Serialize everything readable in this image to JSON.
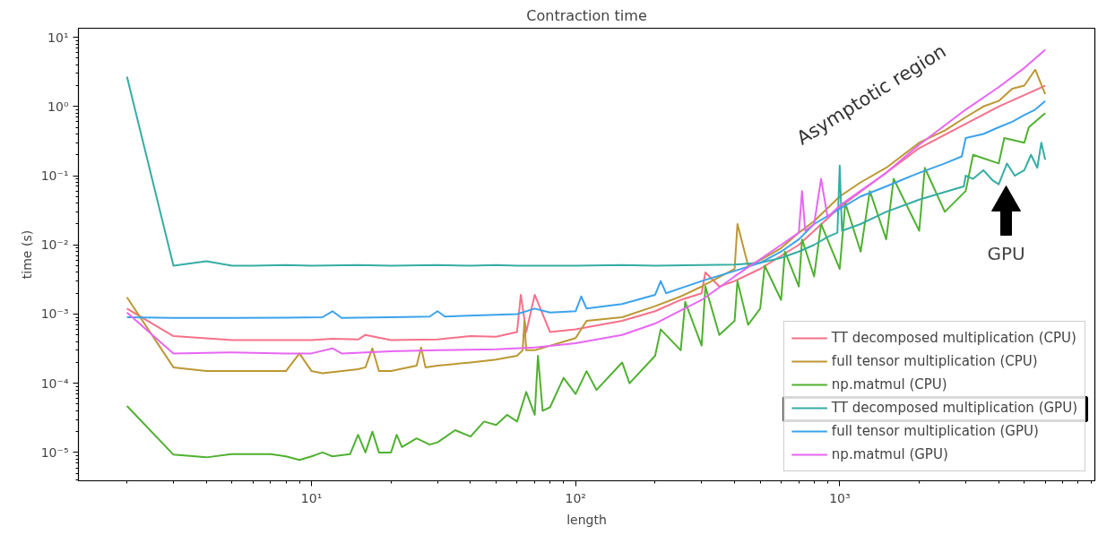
{
  "chart_data": {
    "type": "line",
    "title": "Contraction time",
    "xlabel": "length",
    "ylabel": "time (s)",
    "log": "xy",
    "grid": false,
    "legend": "bottom right",
    "marker": "none",
    "line_style": "solid",
    "xlim": [
      1.31,
      9250
    ],
    "ylim": [
      3.9e-06,
      13.5
    ],
    "xticks": [
      {
        "value": 10,
        "label": "10¹"
      },
      {
        "value": 100,
        "label": "10²"
      },
      {
        "value": 1000,
        "label": "10³"
      }
    ],
    "yticks": [
      {
        "value": 1e-05,
        "label": "10⁻⁵"
      },
      {
        "value": 0.0001,
        "label": "10⁻⁴"
      },
      {
        "value": 0.001,
        "label": "10⁻³"
      },
      {
        "value": 0.01,
        "label": "10⁻²"
      },
      {
        "value": 0.1,
        "label": "10⁻¹"
      },
      {
        "value": 1,
        "label": "10⁰"
      },
      {
        "value": 10,
        "label": "10¹"
      }
    ],
    "annotations": [
      "Asymptotic region",
      "GPU"
    ],
    "series": [
      {
        "name": "TT decomposed multiplication (CPU)",
        "color": "#f77189",
        "x": [
          2,
          3,
          5,
          8,
          10,
          12,
          15,
          16,
          20,
          30,
          40,
          50,
          60,
          62,
          65,
          70,
          80,
          100,
          150,
          200,
          250,
          300,
          310,
          350,
          400,
          500,
          700,
          1000,
          2000,
          4000,
          6000
        ],
        "values": [
          0.0012,
          0.00048,
          0.00042,
          0.00042,
          0.00042,
          0.00044,
          0.00043,
          0.0005,
          0.00042,
          0.00043,
          0.00048,
          0.00047,
          0.00055,
          0.0019,
          0.00055,
          0.0019,
          0.00055,
          0.0006,
          0.0008,
          0.0011,
          0.0016,
          0.002,
          0.004,
          0.0025,
          0.003,
          0.0045,
          0.01,
          0.035,
          0.25,
          1.0,
          2.0
        ]
      },
      {
        "name": "full tensor multiplication (CPU)",
        "color": "#bb9832",
        "x": [
          2,
          3,
          4,
          8,
          9,
          10,
          11,
          15,
          16,
          17,
          18,
          20,
          25,
          26,
          27,
          30,
          40,
          50,
          60,
          63,
          64,
          65,
          70,
          100,
          110,
          150,
          200,
          250,
          300,
          400,
          410,
          450,
          500,
          600,
          700,
          800,
          1000,
          1200,
          1500,
          2000,
          2500,
          3000,
          3500,
          4000,
          4500,
          5000,
          5500,
          6000
        ],
        "values": [
          0.00175,
          0.00017,
          0.00015,
          0.00015,
          0.00027,
          0.00015,
          0.00014,
          0.00016,
          0.00017,
          0.00032,
          0.00015,
          0.00015,
          0.00018,
          0.00033,
          0.00017,
          0.00018,
          0.0002,
          0.00022,
          0.00025,
          0.0003,
          0.0008,
          0.0003,
          0.0003,
          0.00045,
          0.0008,
          0.0009,
          0.0013,
          0.0018,
          0.0025,
          0.0045,
          0.02,
          0.005,
          0.006,
          0.009,
          0.015,
          0.022,
          0.05,
          0.08,
          0.13,
          0.3,
          0.45,
          0.7,
          1.0,
          1.2,
          1.8,
          2.0,
          3.4,
          1.5
        ]
      },
      {
        "name": "np.matmul (CPU)",
        "color": "#50b131",
        "x": [
          2,
          3,
          4,
          5,
          7,
          8,
          9,
          10,
          11,
          12,
          14,
          15,
          16,
          17,
          18,
          20,
          21,
          22,
          25,
          28,
          30,
          35,
          40,
          45,
          50,
          55,
          60,
          65,
          70,
          72,
          75,
          80,
          90,
          100,
          110,
          120,
          150,
          160,
          200,
          210,
          250,
          260,
          300,
          310,
          350,
          400,
          410,
          450,
          500,
          520,
          600,
          620,
          700,
          720,
          800,
          850,
          1000,
          1050,
          1200,
          1300,
          1500,
          1600,
          2000,
          2100,
          2500,
          3000,
          3200,
          4000,
          4200,
          5000,
          5200,
          6000
        ],
        "values": [
          4.7e-05,
          9.3e-06,
          8.5e-06,
          9.5e-06,
          9.5e-06,
          8.8e-06,
          7.8e-06,
          8.8e-06,
          1e-05,
          8.8e-06,
          9.5e-06,
          1.8e-05,
          1e-05,
          2e-05,
          1e-05,
          1e-05,
          1.8e-05,
          1.2e-05,
          1.6e-05,
          1.3e-05,
          1.4e-05,
          2.1e-05,
          1.7e-05,
          2.8e-05,
          2.5e-05,
          3.5e-05,
          2.8e-05,
          7.5e-05,
          3.5e-05,
          0.00025,
          4e-05,
          4.5e-05,
          0.00012,
          7e-05,
          0.00015,
          8e-05,
          0.0002,
          0.0001,
          0.00025,
          0.0006,
          0.0003,
          0.0015,
          0.00035,
          0.0025,
          0.0005,
          0.0008,
          0.003,
          0.0007,
          0.0012,
          0.005,
          0.0016,
          0.008,
          0.0025,
          0.012,
          0.0035,
          0.02,
          0.0045,
          0.04,
          0.008,
          0.06,
          0.012,
          0.09,
          0.016,
          0.13,
          0.03,
          0.06,
          0.2,
          0.15,
          0.35,
          0.3,
          0.5,
          0.8
        ]
      },
      {
        "name": "TT decomposed multiplication (GPU)",
        "color": "#36ada4",
        "x": [
          2,
          3,
          4,
          5,
          6,
          8,
          10,
          15,
          20,
          30,
          40,
          50,
          60,
          80,
          100,
          150,
          200,
          300,
          400,
          500,
          600,
          700,
          800,
          900,
          980,
          1000,
          1020,
          1200,
          1500,
          2000,
          2500,
          2950,
          3000,
          3200,
          3500,
          3800,
          4000,
          4300,
          4600,
          5000,
          5300,
          5600,
          5800,
          6000
        ],
        "values": [
          2.7,
          0.005,
          0.0058,
          0.005,
          0.005,
          0.0051,
          0.005,
          0.0051,
          0.005,
          0.0051,
          0.005,
          0.0051,
          0.005,
          0.005,
          0.005,
          0.0051,
          0.005,
          0.0051,
          0.0052,
          0.0055,
          0.0065,
          0.008,
          0.01,
          0.013,
          0.015,
          0.14,
          0.016,
          0.02,
          0.03,
          0.045,
          0.058,
          0.07,
          0.1,
          0.09,
          0.12,
          0.085,
          0.075,
          0.15,
          0.1,
          0.12,
          0.2,
          0.13,
          0.3,
          0.17
        ]
      },
      {
        "name": "full tensor multiplication (GPU)",
        "color": "#3ba3ec",
        "x": [
          2,
          3,
          5,
          8,
          11,
          12,
          13,
          20,
          28,
          30,
          32,
          50,
          60,
          70,
          80,
          100,
          105,
          110,
          150,
          200,
          210,
          220,
          300,
          400,
          500,
          600,
          700,
          800,
          1000,
          1200,
          1500,
          2000,
          2500,
          2900,
          3000,
          3500,
          4000,
          4500,
          5000,
          5500,
          6000
        ],
        "values": [
          0.0009,
          0.00088,
          0.00088,
          0.00089,
          0.0009,
          0.0011,
          0.00088,
          0.0009,
          0.00092,
          0.0011,
          0.00092,
          0.00098,
          0.001,
          0.0012,
          0.00105,
          0.0011,
          0.0018,
          0.0012,
          0.0014,
          0.0019,
          0.003,
          0.002,
          0.003,
          0.0042,
          0.0055,
          0.008,
          0.012,
          0.02,
          0.033,
          0.05,
          0.07,
          0.11,
          0.15,
          0.19,
          0.35,
          0.4,
          0.5,
          0.6,
          0.75,
          0.9,
          1.2
        ]
      },
      {
        "name": "np.matmul (GPU)",
        "color": "#e866f4",
        "x": [
          2,
          3,
          5,
          8,
          10,
          12,
          13,
          20,
          30,
          50,
          70,
          100,
          150,
          200,
          300,
          400,
          500,
          600,
          700,
          720,
          740,
          800,
          850,
          900,
          1000,
          1500,
          2000,
          3000,
          4000,
          5000,
          6000
        ],
        "values": [
          0.00105,
          0.00027,
          0.00028,
          0.00027,
          0.00027,
          0.00032,
          0.00027,
          0.00029,
          0.0003,
          0.00031,
          0.00033,
          0.00038,
          0.0005,
          0.00073,
          0.0016,
          0.0035,
          0.0062,
          0.01,
          0.015,
          0.06,
          0.016,
          0.02,
          0.09,
          0.025,
          0.037,
          0.11,
          0.28,
          0.9,
          1.9,
          3.6,
          6.6
        ]
      }
    ]
  }
}
